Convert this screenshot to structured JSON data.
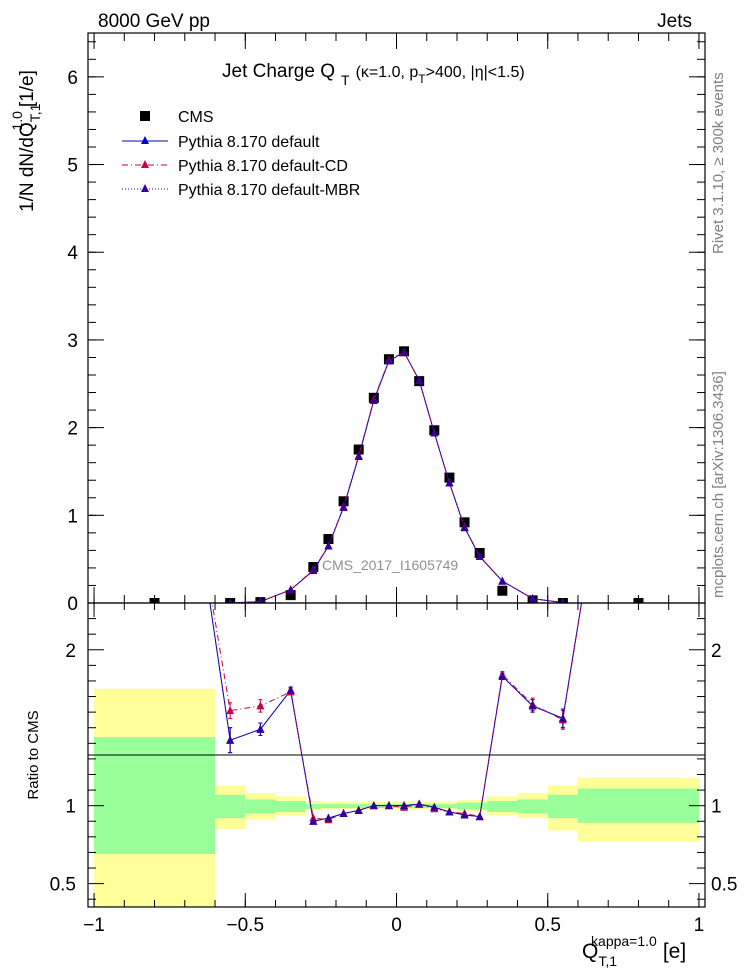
{
  "header": {
    "left": "8000 GeV pp",
    "right": "Jets"
  },
  "side_labels": {
    "rivet": "Rivet 3.1.10, ≥ 300k events",
    "mcplots": "mcplots.cern.ch [arXiv:1306.3436]"
  },
  "watermark": "CMS_2017_I1605749",
  "chart_data": [
    {
      "type": "scatter",
      "panel": "main",
      "title": "Jet Charge Q_T (κ=1.0, p_T>400, |η|<1.5)",
      "title_main": "Jet Charge Q",
      "title_sub": "T",
      "title_params": {
        "pre": "(κ=1.0, p",
        "pt_sub": "T",
        "post": ">400, |η|<1.5)"
      },
      "ylabel": "1/N dN/dQ T,1 1.0 [1/e]",
      "ylabel_parts": {
        "main": "1/N dN/dQ",
        "sub": "T,1",
        "sup": "1.0",
        "unit": "[1/e]"
      },
      "xlim": [
        -1.02,
        1.02
      ],
      "ylim": [
        0,
        6.5
      ],
      "yticks": [
        "0",
        "1",
        "2",
        "3",
        "4",
        "5",
        "6"
      ],
      "legend_position": "top-left",
      "series": [
        {
          "name": "CMS",
          "marker": "square",
          "color": "#000000",
          "x": [
            -0.8,
            -0.55,
            -0.45,
            -0.35,
            -0.275,
            -0.225,
            -0.175,
            -0.125,
            -0.075,
            -0.025,
            0.025,
            0.075,
            0.125,
            0.175,
            0.225,
            0.275,
            0.35,
            0.45,
            0.55,
            0.8
          ],
          "y": [
            0.0,
            0.0,
            0.01,
            0.09,
            0.41,
            0.73,
            1.16,
            1.75,
            2.34,
            2.78,
            2.87,
            2.53,
            1.97,
            1.43,
            0.92,
            0.57,
            0.14,
            0.03,
            0.0,
            0.0
          ]
        },
        {
          "name": "Pythia 8.170 default",
          "marker": "triangle",
          "line": "solid",
          "color": "#0000cc",
          "x": [
            -0.55,
            -0.45,
            -0.35,
            -0.275,
            -0.225,
            -0.175,
            -0.125,
            -0.075,
            -0.025,
            0.025,
            0.075,
            0.125,
            0.175,
            0.225,
            0.275,
            0.35,
            0.45,
            0.55
          ],
          "y": [
            0.0,
            0.015,
            0.15,
            0.37,
            0.65,
            1.09,
            1.67,
            2.31,
            2.76,
            2.86,
            2.54,
            1.94,
            1.37,
            0.86,
            0.53,
            0.25,
            0.05,
            0.005
          ]
        },
        {
          "name": "Pythia 8.170 default-CD",
          "marker": "triangle",
          "line": "dashdot",
          "color": "#cc0044",
          "x": [
            -0.55,
            -0.45,
            -0.35,
            -0.275,
            -0.225,
            -0.175,
            -0.125,
            -0.075,
            -0.025,
            0.025,
            0.075,
            0.125,
            0.175,
            0.225,
            0.275,
            0.35,
            0.45,
            0.55
          ],
          "y": [
            0.0,
            0.016,
            0.15,
            0.38,
            0.65,
            1.1,
            1.68,
            2.32,
            2.77,
            2.86,
            2.54,
            1.94,
            1.37,
            0.87,
            0.53,
            0.25,
            0.05,
            0.005
          ]
        },
        {
          "name": "Pythia 8.170 default-MBR",
          "marker": "triangle",
          "line": "dotted",
          "color": "#330099",
          "x": [
            -0.55,
            -0.45,
            -0.35,
            -0.275,
            -0.225,
            -0.175,
            -0.125,
            -0.075,
            -0.025,
            0.025,
            0.075,
            0.125,
            0.175,
            0.225,
            0.275,
            0.35,
            0.45,
            0.55
          ],
          "y": [
            0.0,
            0.015,
            0.15,
            0.37,
            0.65,
            1.09,
            1.67,
            2.31,
            2.76,
            2.86,
            2.54,
            1.94,
            1.37,
            0.86,
            0.53,
            0.25,
            0.05,
            0.005
          ]
        }
      ]
    },
    {
      "type": "line",
      "panel": "ratio",
      "ylabel": "Ratio to CMS",
      "xlabel": "Q T,1 kappa=1.0 [e]",
      "xlabel_parts": {
        "main": "Q",
        "sub": "T,1",
        "sup": "kappa=1.0",
        "unit": "[e]"
      },
      "xlim": [
        -1.02,
        1.02
      ],
      "ylim": [
        0.35,
        2.3
      ],
      "xticks": [
        "−1",
        "−0.5",
        "0",
        "0.5",
        "1"
      ],
      "yticks": [
        "0.5",
        "1",
        "2"
      ],
      "bands": [
        {
          "x0": -1.0,
          "x1": -0.6,
          "inner": [
            0.69,
            1.44
          ],
          "outer": [
            0.35,
            1.75
          ]
        },
        {
          "x0": -0.6,
          "x1": -0.5,
          "inner": [
            0.92,
            1.07
          ],
          "outer": [
            0.85,
            1.13
          ]
        },
        {
          "x0": -0.5,
          "x1": -0.4,
          "inner": [
            0.95,
            1.04
          ],
          "outer": [
            0.91,
            1.08
          ]
        },
        {
          "x0": -0.4,
          "x1": -0.3,
          "inner": [
            0.96,
            1.03
          ],
          "outer": [
            0.94,
            1.06
          ]
        },
        {
          "x0": -0.3,
          "x1": -0.25,
          "inner": [
            0.98,
            1.01
          ],
          "outer": [
            0.97,
            1.03
          ]
        },
        {
          "x0": -0.25,
          "x1": 0.2,
          "inner": [
            0.985,
            1.01
          ],
          "outer": [
            0.975,
            1.025
          ]
        },
        {
          "x0": 0.2,
          "x1": 0.3,
          "inner": [
            0.975,
            1.02
          ],
          "outer": [
            0.965,
            1.035
          ]
        },
        {
          "x0": 0.3,
          "x1": 0.4,
          "inner": [
            0.96,
            1.03
          ],
          "outer": [
            0.94,
            1.06
          ]
        },
        {
          "x0": 0.4,
          "x1": 0.5,
          "inner": [
            0.95,
            1.04
          ],
          "outer": [
            0.92,
            1.08
          ]
        },
        {
          "x0": 0.5,
          "x1": 0.6,
          "inner": [
            0.92,
            1.07
          ],
          "outer": [
            0.84,
            1.13
          ]
        },
        {
          "x0": 0.6,
          "x1": 1.0,
          "inner": [
            0.89,
            1.11
          ],
          "outer": [
            0.77,
            1.18
          ]
        }
      ],
      "band_colors": {
        "inner": "#99ff99",
        "outer": "#ffff99"
      },
      "series": [
        {
          "name": "Pythia 8.170 default",
          "color": "#0000cc",
          "line": "solid",
          "x": [
            -0.55,
            -0.45,
            -0.35,
            -0.275,
            -0.225,
            -0.175,
            -0.125,
            -0.075,
            -0.025,
            0.025,
            0.075,
            0.125,
            0.175,
            0.225,
            0.275,
            0.35,
            0.45,
            0.55
          ],
          "y": [
            1.42,
            1.49,
            1.74,
            0.9,
            0.92,
            0.95,
            0.97,
            1.0,
            1.0,
            1.0,
            1.01,
            0.99,
            0.96,
            0.94,
            0.93,
            1.83,
            1.64,
            1.56
          ],
          "err": [
            0.08,
            0.04,
            0.02,
            0.01,
            0.01,
            0.01,
            0.01,
            0.005,
            0.005,
            0.005,
            0.005,
            0.01,
            0.01,
            0.01,
            0.01,
            0.02,
            0.04,
            0.06
          ]
        },
        {
          "name": "Pythia 8.170 default-CD",
          "color": "#cc0044",
          "line": "dashdot",
          "x": [
            -0.55,
            -0.45,
            -0.35,
            -0.275,
            -0.225,
            -0.175,
            -0.125,
            -0.075,
            -0.025,
            0.025,
            0.075,
            0.125,
            0.175,
            0.225,
            0.275,
            0.35,
            0.45,
            0.55
          ],
          "y": [
            1.61,
            1.64,
            1.73,
            0.92,
            0.91,
            0.95,
            0.97,
            1.0,
            1.0,
            0.99,
            1.01,
            0.98,
            0.96,
            0.95,
            0.93,
            1.84,
            1.65,
            1.55
          ],
          "err": [
            0.05,
            0.04,
            0.02,
            0.01,
            0.01,
            0.01,
            0.01,
            0.005,
            0.005,
            0.005,
            0.005,
            0.01,
            0.01,
            0.01,
            0.01,
            0.02,
            0.04,
            0.06
          ]
        },
        {
          "name": "Pythia 8.170 default-MBR",
          "color": "#330099",
          "line": "dotted",
          "x": [
            -0.55,
            -0.45,
            -0.35,
            -0.275,
            -0.225,
            -0.175,
            -0.125,
            -0.075,
            -0.025,
            0.025,
            0.075,
            0.125,
            0.175,
            0.225,
            0.275,
            0.35,
            0.45,
            0.55
          ],
          "y": [
            1.42,
            1.49,
            1.74,
            0.9,
            0.92,
            0.95,
            0.97,
            1.0,
            1.0,
            1.0,
            1.01,
            0.99,
            0.96,
            0.94,
            0.93,
            1.83,
            1.64,
            1.56
          ],
          "err": [
            0.08,
            0.04,
            0.02,
            0.01,
            0.01,
            0.01,
            0.01,
            0.005,
            0.005,
            0.005,
            0.005,
            0.01,
            0.01,
            0.01,
            0.01,
            0.02,
            0.04,
            0.06
          ]
        }
      ]
    }
  ]
}
